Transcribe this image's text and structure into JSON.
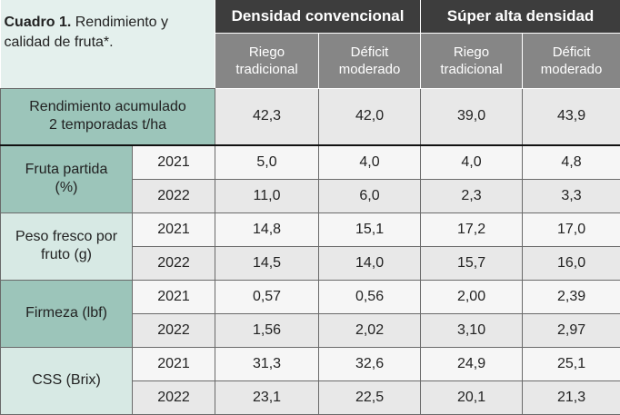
{
  "title": {
    "bold": "Cuadro 1.",
    "rest": " Rendimiento y calidad de fruta*."
  },
  "groups": [
    "Densidad convencional",
    "Súper alta densidad"
  ],
  "subheaders": [
    {
      "l1": "Riego",
      "l2": "tradicional"
    },
    {
      "l1": "Déficit",
      "l2": "moderado"
    },
    {
      "l1": "Riego",
      "l2": "tradicional"
    },
    {
      "l1": "Déficit",
      "l2": "moderado"
    }
  ],
  "rendimiento": {
    "l1": "Rendimiento acumulado",
    "l2": "2 temporadas t/ha",
    "values": [
      "42,3",
      "42,0",
      "39,0",
      "43,9"
    ]
  },
  "metrics": [
    {
      "l1": "Fruta partida",
      "l2": "(%)",
      "rows": [
        {
          "year": "2021",
          "values": [
            "5,0",
            "4,0",
            "4,0",
            "4,8"
          ]
        },
        {
          "year": "2022",
          "values": [
            "11,0",
            "6,0",
            "2,3",
            "3,3"
          ]
        }
      ]
    },
    {
      "l1": "Peso fresco por",
      "l2": "fruto (g)",
      "rows": [
        {
          "year": "2021",
          "values": [
            "14,8",
            "15,1",
            "17,2",
            "17,0"
          ]
        },
        {
          "year": "2022",
          "values": [
            "14,5",
            "14,0",
            "15,7",
            "16,0"
          ]
        }
      ]
    },
    {
      "l1": "Firmeza (lbf)",
      "l2": "",
      "rows": [
        {
          "year": "2021",
          "values": [
            "0,57",
            "0,56",
            "2,00",
            "2,39"
          ]
        },
        {
          "year": "2022",
          "values": [
            "1,56",
            "2,02",
            "3,10",
            "2,97"
          ]
        }
      ]
    },
    {
      "l1": "CSS (Brix)",
      "l2": "",
      "rows": [
        {
          "year": "2021",
          "values": [
            "31,3",
            "32,6",
            "24,9",
            "25,1"
          ]
        },
        {
          "year": "2022",
          "values": [
            "23,1",
            "22,5",
            "20,1",
            "21,3"
          ]
        }
      ]
    }
  ]
}
